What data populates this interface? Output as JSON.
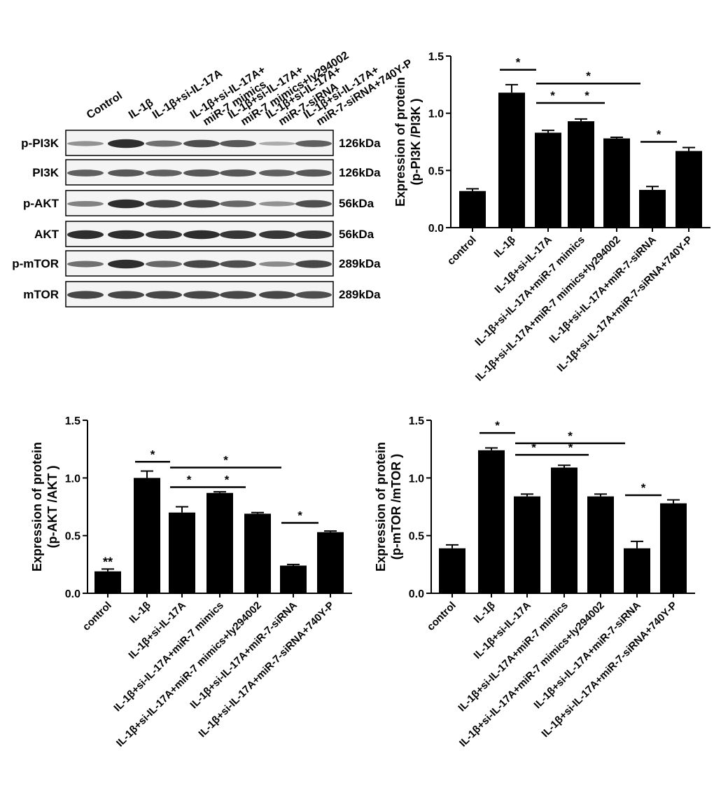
{
  "western_blot": {
    "lanes": [
      "Control",
      "IL-1β",
      "IL-1β+si-IL-17A",
      "IL-1β+si-IL-17A+\nmiR-7 mimics",
      "IL-1β+si-IL-17A+\nmiR-7 mimics+ly294002",
      "IL-1β+si-IL-17A+\nmiR-7-siRNA",
      "IL-1β+si-IL-17A+\nmiR-7-siRNA+740Y-P"
    ],
    "rows": [
      {
        "label": "p-PI3K",
        "size": "126kDa",
        "intensity": [
          0.35,
          0.95,
          0.55,
          0.75,
          0.7,
          0.2,
          0.65
        ]
      },
      {
        "label": "PI3K",
        "size": "126kDa",
        "intensity": [
          0.65,
          0.7,
          0.65,
          0.7,
          0.7,
          0.65,
          0.7
        ]
      },
      {
        "label": "p-AKT",
        "size": "56kDa",
        "intensity": [
          0.45,
          0.95,
          0.8,
          0.8,
          0.6,
          0.35,
          0.75
        ]
      },
      {
        "label": "AKT",
        "size": "56kDa",
        "intensity": [
          0.95,
          0.95,
          0.9,
          0.95,
          0.9,
          0.9,
          0.9
        ]
      },
      {
        "label": "p-mTOR",
        "size": "289kDa",
        "intensity": [
          0.55,
          0.95,
          0.6,
          0.8,
          0.75,
          0.4,
          0.8
        ]
      },
      {
        "label": "mTOR",
        "size": "289kDa",
        "intensity": [
          0.8,
          0.8,
          0.8,
          0.8,
          0.8,
          0.8,
          0.75
        ]
      }
    ]
  },
  "chart_data": [
    {
      "type": "bar",
      "ylabel": "Expression of protein\n(p-PI3K /PI3K )",
      "categories": [
        "control",
        "IL-1β",
        "IL-1β+si-IL-17A",
        "IL-1β+si-IL-17A+miR-7 mimics",
        "IL-1β+si-IL-17A+miR-7 mimics+ly294002",
        "IL-1β+si-IL-17A+miR-7-siRNA",
        "IL-1β+si-IL-17A+miR-7-siRNA+740Y-P"
      ],
      "values": [
        0.32,
        1.18,
        0.83,
        0.93,
        0.78,
        0.33,
        0.67
      ],
      "errors": [
        0.02,
        0.07,
        0.02,
        0.02,
        0.01,
        0.03,
        0.03
      ],
      "ylim": [
        0,
        1.5
      ],
      "yticks": [
        "0.0",
        "0.5",
        "1.0",
        "1.5"
      ],
      "bar_annotations": [],
      "significance": [
        {
          "from": 1,
          "to": 2,
          "label": "*",
          "level": 1.38
        },
        {
          "from": 2,
          "to": 5,
          "label": "*",
          "level": 1.26
        },
        {
          "from": 2,
          "to": 3,
          "label": "*",
          "level": 1.09
        },
        {
          "from": 3,
          "to": 4,
          "label": "*",
          "level": 1.09
        },
        {
          "from": 5,
          "to": 6,
          "label": "*",
          "level": 0.75
        }
      ]
    },
    {
      "type": "bar",
      "ylabel": "Expression of protein\n(p-AKT /AKT )",
      "categories": [
        "control",
        "IL-1β",
        "IL-1β+si-IL-17A",
        "IL-1β+si-IL-17A+miR-7 mimics",
        "IL-1β+si-IL-17A+miR-7 mimics+ly294002",
        "IL-1β+si-IL-17A+miR-7-siRNA",
        "IL-1β+si-IL-17A+miR-7-siRNA+740Y-P"
      ],
      "values": [
        0.19,
        1.0,
        0.7,
        0.87,
        0.69,
        0.24,
        0.53
      ],
      "errors": [
        0.02,
        0.06,
        0.05,
        0.01,
        0.01,
        0.01,
        0.01
      ],
      "ylim": [
        0,
        1.5
      ],
      "yticks": [
        "0.0",
        "0.5",
        "1.0",
        "1.5"
      ],
      "bar_annotations": [
        {
          "index": 0,
          "label": "**"
        }
      ],
      "significance": [
        {
          "from": 1,
          "to": 2,
          "label": "*",
          "level": 1.14
        },
        {
          "from": 2,
          "to": 5,
          "label": "*",
          "level": 1.09
        },
        {
          "from": 2,
          "to": 3,
          "label": "*",
          "level": 0.92
        },
        {
          "from": 3,
          "to": 4,
          "label": "*",
          "level": 0.92
        },
        {
          "from": 5,
          "to": 6,
          "label": "*",
          "level": 0.61
        }
      ]
    },
    {
      "type": "bar",
      "ylabel": "Expression of protein\n(p-mTOR /mTOR )",
      "categories": [
        "control",
        "IL-1β",
        "IL-1β+si-IL-17A",
        "IL-1β+si-IL-17A+miR-7 mimics",
        "IL-1β+si-IL-17A+miR-7 mimics+ly294002",
        "IL-1β+si-IL-17A+miR-7-siRNA",
        "IL-1β+si-IL-17A+miR-7-siRNA+740Y-P"
      ],
      "values": [
        0.39,
        1.24,
        0.84,
        1.09,
        0.84,
        0.39,
        0.78
      ],
      "errors": [
        0.03,
        0.02,
        0.02,
        0.02,
        0.02,
        0.06,
        0.03
      ],
      "ylim": [
        0,
        1.5
      ],
      "yticks": [
        "0.0",
        "0.5",
        "1.0",
        "1.5"
      ],
      "bar_annotations": [],
      "significance": [
        {
          "from": 1,
          "to": 2,
          "label": "*",
          "level": 1.39
        },
        {
          "from": 2,
          "to": 5,
          "label": "*",
          "level": 1.3
        },
        {
          "from": 2,
          "to": 3,
          "label": "*",
          "level": 1.2
        },
        {
          "from": 3,
          "to": 4,
          "label": "*",
          "level": 1.2
        },
        {
          "from": 5,
          "to": 6,
          "label": "*",
          "level": 0.85
        }
      ]
    }
  ]
}
